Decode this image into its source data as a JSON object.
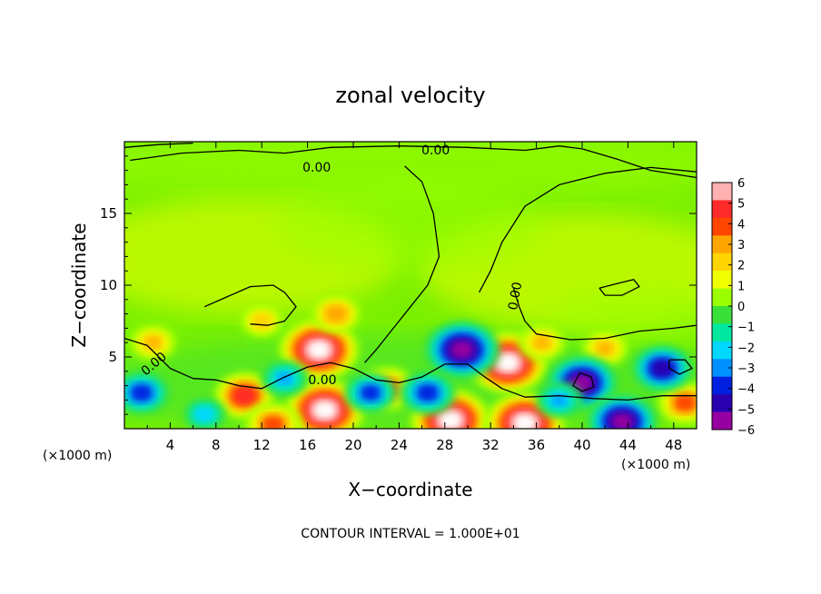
{
  "chart_data": {
    "type": "heatmap",
    "title": "zonal velocity",
    "xlabel": "X−coordinate",
    "ylabel": "Z−coordinate",
    "x_unit": "(×1000 m)",
    "z_unit": "(×1000 m)",
    "xlim": [
      0,
      50
    ],
    "ylim": [
      0,
      20
    ],
    "x_ticks": [
      4,
      8,
      12,
      16,
      20,
      24,
      28,
      32,
      36,
      40,
      44,
      48
    ],
    "y_ticks": [
      5,
      10,
      15
    ],
    "colorbar": {
      "min": -6,
      "max": 6,
      "ticks": [
        "6",
        "5",
        "4",
        "3",
        "2",
        "1",
        "0",
        "−1",
        "−2",
        "−3",
        "−4",
        "−5",
        "−6"
      ],
      "colors": [
        "#ffb0b0",
        "#ff2a2a",
        "#ff4500",
        "#ffa500",
        "#ffd400",
        "#f0ff00",
        "#9cff00",
        "#3ae03a",
        "#00e8a0",
        "#00d8ff",
        "#0090ff",
        "#0020e0",
        "#2a00b0",
        "#9600a0"
      ]
    },
    "contour_labels": [
      "0.00",
      "0.00",
      "0.00",
      "0.00",
      "0.00"
    ],
    "contour_interval_text": "CONTOUR INTERVAL = 1.000E+01",
    "features": [
      {
        "kind": "positive",
        "x": 17.0,
        "z": 5.5,
        "value": 6.5
      },
      {
        "kind": "positive",
        "x": 18.5,
        "z": 8.0,
        "value": 3.2
      },
      {
        "kind": "positive",
        "x": 17.5,
        "z": 1.3,
        "value": 6.5
      },
      {
        "kind": "positive",
        "x": 33.5,
        "z": 4.6,
        "value": 6.5
      },
      {
        "kind": "positive",
        "x": 28.5,
        "z": 0.6,
        "value": 6.5
      },
      {
        "kind": "positive",
        "x": 35.0,
        "z": 0.4,
        "value": 6.5
      },
      {
        "kind": "positive",
        "x": 42.0,
        "z": 5.6,
        "value": 3.0
      },
      {
        "kind": "positive",
        "x": 10.5,
        "z": 2.3,
        "value": 4.5
      },
      {
        "kind": "positive",
        "x": 23.0,
        "z": 2.8,
        "value": 4.0
      },
      {
        "kind": "positive",
        "x": 2.5,
        "z": 6.0,
        "value": 3.0
      },
      {
        "kind": "positive",
        "x": 12.0,
        "z": 7.5,
        "value": 2.5
      },
      {
        "kind": "positive",
        "x": 36.5,
        "z": 6.0,
        "value": 3.0
      },
      {
        "kind": "positive",
        "x": 49.0,
        "z": 1.8,
        "value": 4.0
      },
      {
        "kind": "positive",
        "x": 13.0,
        "z": 0.3,
        "value": 4.0
      },
      {
        "kind": "negative",
        "x": 29.5,
        "z": 5.5,
        "value": -6.0
      },
      {
        "kind": "negative",
        "x": 26.5,
        "z": 2.5,
        "value": -4.0
      },
      {
        "kind": "negative",
        "x": 21.5,
        "z": 2.5,
        "value": -3.5
      },
      {
        "kind": "negative",
        "x": 40.0,
        "z": 3.2,
        "value": -5.5
      },
      {
        "kind": "negative",
        "x": 43.5,
        "z": 0.5,
        "value": -5.5
      },
      {
        "kind": "negative",
        "x": 47.0,
        "z": 4.2,
        "value": -4.5
      },
      {
        "kind": "negative",
        "x": 1.5,
        "z": 2.5,
        "value": -4.0
      },
      {
        "kind": "negative",
        "x": 14.0,
        "z": 3.5,
        "value": -3.0
      },
      {
        "kind": "negative",
        "x": 7.0,
        "z": 1.0,
        "value": -2.5
      },
      {
        "kind": "negative",
        "x": 38.0,
        "z": 2.0,
        "value": -3.0
      }
    ]
  }
}
